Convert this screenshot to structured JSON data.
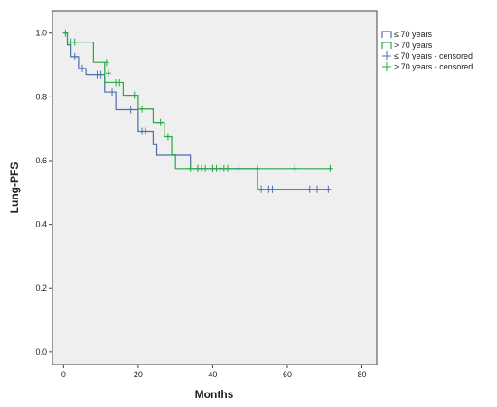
{
  "chart_data": {
    "type": "line",
    "subtype": "kaplan-meier step",
    "title": "",
    "xlabel": "Months",
    "ylabel": "Lung-PFS",
    "xlim": [
      -3,
      84
    ],
    "ylim": [
      -0.04,
      1.07
    ],
    "xticks": [
      0,
      20,
      40,
      60,
      80
    ],
    "yticks": [
      0.0,
      0.2,
      0.4,
      0.6,
      0.8,
      1.0
    ],
    "xtick_labels": [
      "0",
      "20",
      "40",
      "60",
      "80"
    ],
    "ytick_labels": [
      "0.0",
      "0.2",
      "0.4",
      "0.6",
      "0.8",
      "1.0"
    ],
    "grid": false,
    "plot_background": "#efefef",
    "legend_position": "top-right, outside plot area",
    "legend": [
      {
        "label": "≤ 70 years",
        "kind": "step",
        "color": "#4a6fb0"
      },
      {
        "label": "> 70 years",
        "kind": "step",
        "color": "#2aa845"
      },
      {
        "label": "≤ 70 years - censored",
        "kind": "censor",
        "color": "#4a6fb0"
      },
      {
        "label": "> 70 years - censored",
        "kind": "censor",
        "color": "#2aa845"
      }
    ],
    "series": [
      {
        "name": "≤ 70 years",
        "color": "#4a6fb0",
        "steps": [
          [
            0,
            1.0
          ],
          [
            1,
            0.963
          ],
          [
            2,
            0.926
          ],
          [
            4,
            0.889
          ],
          [
            6,
            0.87
          ],
          [
            11,
            0.815
          ],
          [
            14,
            0.76
          ],
          [
            20,
            0.692
          ],
          [
            24,
            0.65
          ],
          [
            25,
            0.617
          ],
          [
            34,
            0.575
          ],
          [
            52,
            0.51
          ]
        ],
        "end_x": 71.5,
        "censored": [
          [
            3,
            0.926
          ],
          [
            5,
            0.889
          ],
          [
            9,
            0.87
          ],
          [
            10,
            0.87
          ],
          [
            13,
            0.815
          ],
          [
            17,
            0.76
          ],
          [
            18,
            0.76
          ],
          [
            21,
            0.692
          ],
          [
            22,
            0.692
          ],
          [
            36,
            0.575
          ],
          [
            37,
            0.575
          ],
          [
            40,
            0.575
          ],
          [
            42,
            0.575
          ],
          [
            47,
            0.575
          ],
          [
            53,
            0.51
          ],
          [
            55,
            0.51
          ],
          [
            56,
            0.51
          ],
          [
            66,
            0.51
          ],
          [
            68,
            0.51
          ],
          [
            71,
            0.51
          ]
        ]
      },
      {
        "name": "> 70 years",
        "color": "#2aa845",
        "steps": [
          [
            0,
            1.0
          ],
          [
            1,
            0.972
          ],
          [
            8,
            0.908
          ],
          [
            11,
            0.845
          ],
          [
            16,
            0.805
          ],
          [
            20,
            0.762
          ],
          [
            24,
            0.72
          ],
          [
            27,
            0.675
          ],
          [
            29,
            0.618
          ],
          [
            30,
            0.575
          ]
        ],
        "end_x": 71.5,
        "censored": [
          [
            0.5,
            1.0
          ],
          [
            2,
            0.972
          ],
          [
            3,
            0.972
          ],
          [
            11.5,
            0.908
          ],
          [
            12,
            0.874
          ],
          [
            14,
            0.845
          ],
          [
            15,
            0.845
          ],
          [
            17,
            0.805
          ],
          [
            19,
            0.805
          ],
          [
            21,
            0.762
          ],
          [
            26,
            0.72
          ],
          [
            28,
            0.675
          ],
          [
            34,
            0.575
          ],
          [
            36,
            0.575
          ],
          [
            38,
            0.575
          ],
          [
            40,
            0.575
          ],
          [
            41,
            0.575
          ],
          [
            43,
            0.575
          ],
          [
            44,
            0.575
          ],
          [
            52,
            0.575
          ],
          [
            62,
            0.575
          ],
          [
            71.5,
            0.575
          ]
        ]
      }
    ]
  }
}
